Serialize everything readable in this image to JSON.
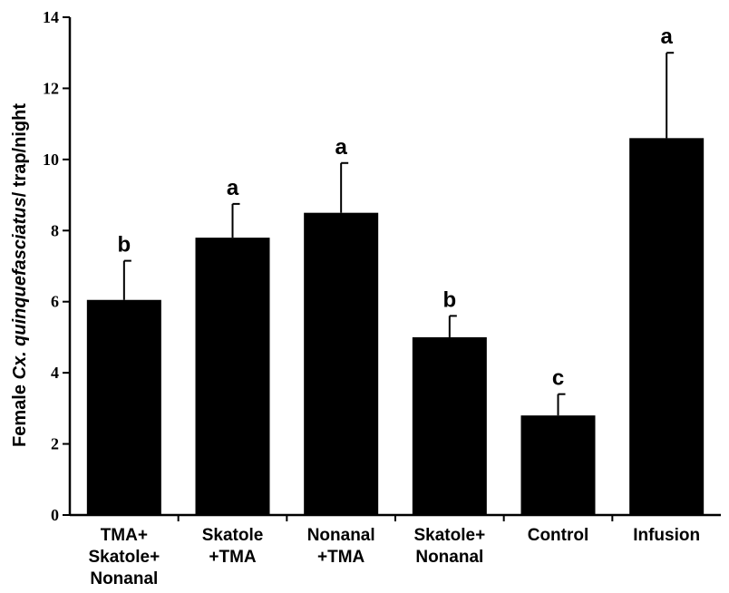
{
  "chart_data": {
    "type": "bar",
    "title": "",
    "ylabel_parts": [
      {
        "text": "Female ",
        "italic": false
      },
      {
        "text": "Cx. quinquefasciatus",
        "italic": true
      },
      {
        "text": "/ trap/night",
        "italic": false
      }
    ],
    "xlabel": "",
    "ylim": [
      0,
      14
    ],
    "yticks": [
      0,
      2,
      4,
      6,
      8,
      10,
      12,
      14
    ],
    "categories": [
      [
        "TMA+",
        "Skatole+",
        "Nonanal"
      ],
      [
        "Skatole",
        "+TMA"
      ],
      [
        "Nonanal",
        "+TMA"
      ],
      [
        "Skatole+",
        "Nonanal"
      ],
      [
        "Control"
      ],
      [
        "Infusion"
      ]
    ],
    "values": [
      6.05,
      7.8,
      8.5,
      5.0,
      2.8,
      10.6
    ],
    "errors": [
      1.1,
      0.95,
      1.4,
      0.6,
      0.6,
      2.4
    ],
    "significance": [
      "b",
      "a",
      "a",
      "b",
      "c",
      "a"
    ],
    "bar_color": "#000000",
    "grid": false
  }
}
